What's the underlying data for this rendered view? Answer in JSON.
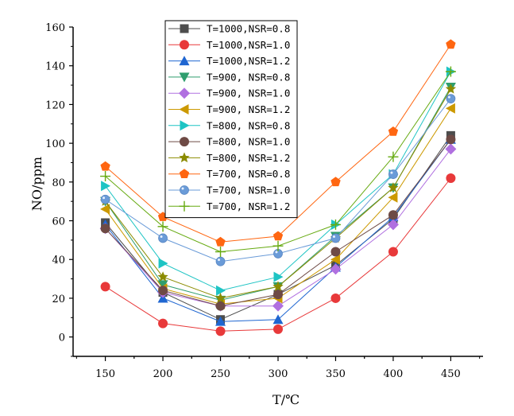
{
  "chart_data": {
    "type": "line",
    "title": "",
    "xlabel": "T/℃",
    "ylabel": "NO/ppm",
    "x": [
      150,
      200,
      250,
      300,
      350,
      400,
      450
    ],
    "xlim": [
      122,
      478
    ],
    "ylim": [
      -10,
      160
    ],
    "xticks": [
      150,
      200,
      250,
      300,
      350,
      400,
      450
    ],
    "yticks": [
      0,
      20,
      40,
      60,
      80,
      100,
      120,
      140,
      160
    ],
    "grid": false,
    "legend_position": "top-center",
    "series": [
      {
        "name": "T=1000, NSR=0.8",
        "marker": "square",
        "color": "#4d4d4d",
        "values": [
          59,
          23,
          9,
          22,
          37,
          61,
          104
        ]
      },
      {
        "name": "T=1000, NSR=1.0",
        "marker": "circle",
        "color": "#e8393a",
        "values": [
          26,
          7,
          3,
          4,
          20,
          44,
          82
        ]
      },
      {
        "name": "T=1000, NSR=1.2",
        "marker": "triangle-up",
        "color": "#1f66d1",
        "values": [
          58,
          20,
          8,
          9,
          36,
          62,
          102
        ]
      },
      {
        "name": "T=900, NSR=0.8",
        "marker": "triangle-down",
        "color": "#2f9e6e",
        "values": [
          70,
          27,
          19,
          26,
          52,
          77,
          129
        ]
      },
      {
        "name": "T=900, NSR=1.0",
        "marker": "diamond",
        "color": "#b070e0",
        "values": [
          56,
          23,
          16,
          16,
          35,
          58,
          97
        ]
      },
      {
        "name": "T=900, NSR=1.2",
        "marker": "triangle-left",
        "color": "#cc9900",
        "values": [
          66,
          25,
          17,
          20,
          40,
          72,
          118
        ]
      },
      {
        "name": "T=800, NSR=0.8",
        "marker": "triangle-right",
        "color": "#1ec4c4",
        "values": [
          78,
          38,
          24,
          31,
          58,
          84,
          137
        ]
      },
      {
        "name": "T=800, NSR=1.0",
        "marker": "circle",
        "color": "#6e4a45",
        "values": [
          56,
          24,
          16,
          22,
          44,
          63,
          102
        ]
      },
      {
        "name": "T=800, NSR=1.2",
        "marker": "star",
        "color": "#8b8b00",
        "values": [
          70,
          31,
          20,
          26,
          51,
          77,
          128
        ]
      },
      {
        "name": "T=700, NSR=0.8",
        "marker": "pentagon",
        "color": "#ff6611",
        "values": [
          88,
          62,
          49,
          52,
          80,
          106,
          151
        ]
      },
      {
        "name": "T=700, NSR=1.0",
        "marker": "sphere",
        "color": "#6a9bd8",
        "values": [
          71,
          51,
          39,
          43,
          51,
          84,
          123
        ]
      },
      {
        "name": "T=700, NSR=1.2",
        "marker": "plus",
        "color": "#66aa11",
        "values": [
          83,
          57,
          44,
          47,
          58,
          93,
          137
        ]
      }
    ]
  },
  "legend": {
    "labels": [
      "T=1000,NSR=0.8",
      "T=1000,NSR=1.0",
      "T=1000,NSR=1.2",
      "T=900, NSR=0.8",
      "T=900, NSR=1.0",
      "T=900, NSR=1.2",
      "T=800, NSR=0.8",
      "T=800, NSR=1.0",
      "T=800, NSR=1.2",
      "T=700, NSR=0.8",
      "T=700, NSR=1.0",
      "T=700, NSR=1.2"
    ]
  }
}
